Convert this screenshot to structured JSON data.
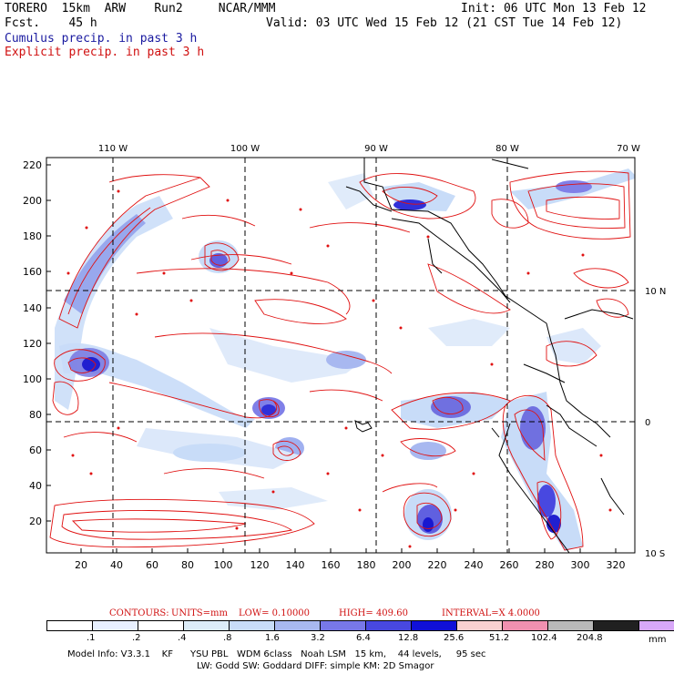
{
  "header": {
    "model_line": "TORERO  15km  ARW    Run2     NCAR/MMM",
    "init_line": "Init: 06 UTC Mon 13 Feb 12",
    "fcst_line": "Fcst.    45 h",
    "valid_line": "Valid: 03 UTC Wed 15 Feb 12 (21 CST Tue 14 Feb 12)",
    "cumulus_label": "Cumulus precip. in past 3 h",
    "explicit_label": "Explicit precip. in past 3 h"
  },
  "axes": {
    "top_lon_labels": [
      "110 W",
      "100 W",
      "90 W",
      "80 W",
      "70 W"
    ],
    "right_lat_labels": [
      "10 N",
      "0",
      "10 S"
    ],
    "left_y_ticks": [
      "220",
      "200",
      "180",
      "160",
      "140",
      "120",
      "100",
      "80",
      "60",
      "40",
      "20"
    ],
    "bottom_x_ticks": [
      "20",
      "40",
      "60",
      "80",
      "100",
      "120",
      "140",
      "160",
      "180",
      "200",
      "220",
      "240",
      "260",
      "280",
      "300",
      "320"
    ]
  },
  "contour_info": {
    "contours": "CONTOURS:",
    "units": "UNITS=mm",
    "low": "LOW=  0.10000",
    "high": "HIGH=  409.60",
    "interval": "INTERVAL=X  4.0000"
  },
  "colorbar": {
    "labels": [
      ".1",
      ".2",
      ".4",
      ".8",
      "1.6",
      "3.2",
      "6.4",
      "12.8",
      "25.6",
      "51.2",
      "102.4",
      "204.8"
    ],
    "unit": "mm",
    "colors": [
      "#ffffff",
      "#e8f0ff",
      "#ffffff",
      "#dcecf8",
      "#c8dcf8",
      "#a8b8f0",
      "#7878e8",
      "#4848e0",
      "#1010d8",
      "#f8d0d0",
      "#f090b0",
      "#b8b8b8",
      "#202020",
      "#d8a8f8"
    ]
  },
  "footer": {
    "line1": "Model Info: V3.3.1    KF      YSU PBL   WDM 6class   Noah LSM   15 km,    44 levels,     95 sec",
    "line2": "LW: Godd SW: Goddard DIFF: simple KM: 2D Smagor"
  }
}
